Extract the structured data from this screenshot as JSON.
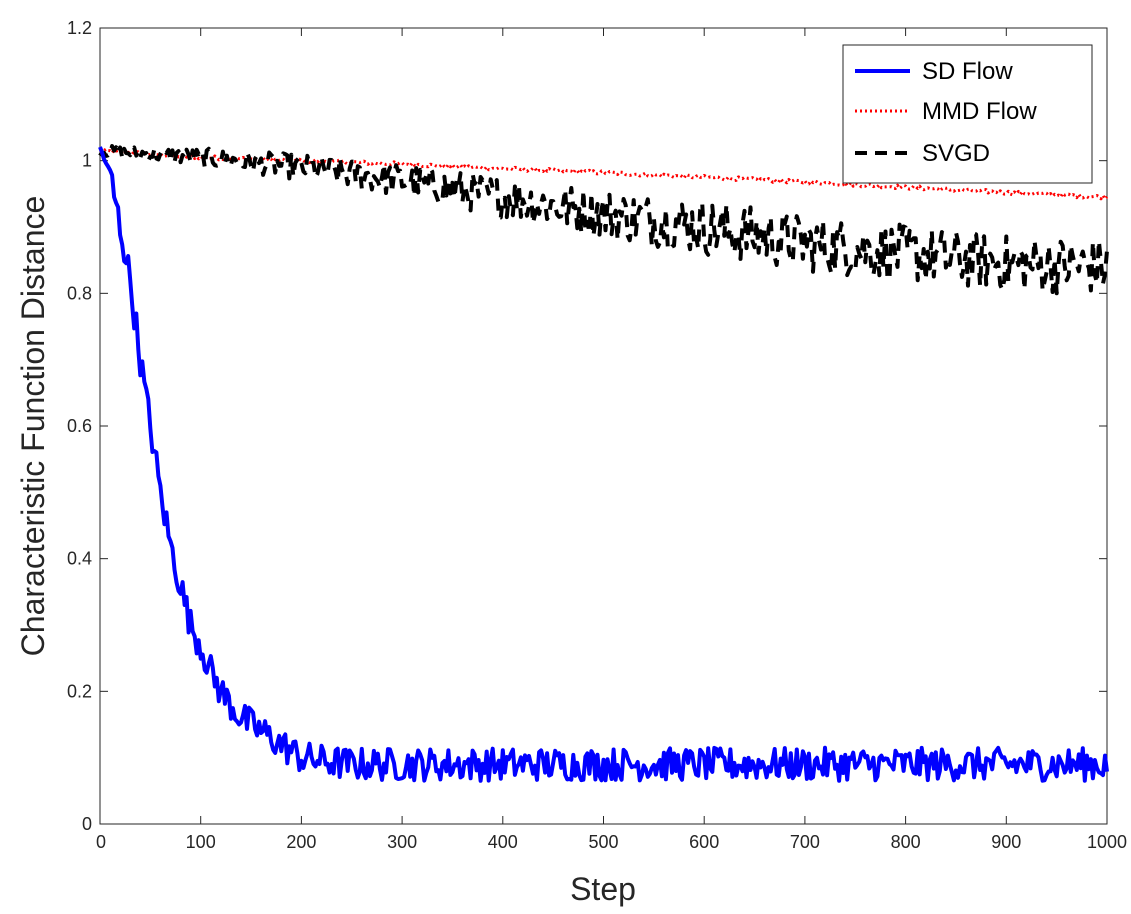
{
  "chart_data": {
    "type": "line",
    "title": "",
    "xlabel": "Step",
    "ylabel": "Characteristic Function Distance",
    "xlim": [
      0,
      1000
    ],
    "ylim": [
      0,
      1.2
    ],
    "xticks": [
      0,
      100,
      200,
      300,
      400,
      500,
      600,
      700,
      800,
      900,
      1000
    ],
    "xtick_labels": [
      "0",
      "100",
      "200",
      "300",
      "400",
      "500",
      "600",
      "700",
      "800",
      "900",
      "1000"
    ],
    "yticks": [
      0,
      0.2,
      0.4,
      0.6,
      0.8,
      1.0,
      1.2
    ],
    "ytick_labels": [
      "0",
      "0.2",
      "0.4",
      "0.6",
      "0.8",
      "1",
      "1.2"
    ],
    "grid": false,
    "legend_position": "top-right",
    "series": [
      {
        "name": "SD Flow",
        "color": "#0000ff",
        "style": "solid",
        "x": [
          0,
          10,
          20,
          30,
          40,
          50,
          60,
          70,
          80,
          90,
          100,
          110,
          120,
          130,
          140,
          150,
          160,
          170,
          180,
          190,
          200,
          220,
          250,
          300,
          350,
          400,
          450,
          500,
          550,
          600,
          650,
          700,
          750,
          800,
          850,
          900,
          950,
          1000
        ],
        "values": [
          1.02,
          0.98,
          0.9,
          0.82,
          0.7,
          0.6,
          0.5,
          0.42,
          0.36,
          0.3,
          0.27,
          0.23,
          0.2,
          0.18,
          0.16,
          0.15,
          0.14,
          0.13,
          0.12,
          0.11,
          0.1,
          0.095,
          0.09,
          0.09,
          0.09,
          0.09,
          0.09,
          0.09,
          0.09,
          0.09,
          0.09,
          0.09,
          0.09,
          0.09,
          0.09,
          0.09,
          0.09,
          0.09
        ]
      },
      {
        "name": "MMD Flow",
        "color": "#ff0000",
        "style": "dotted",
        "x": [
          0,
          100,
          200,
          300,
          400,
          500,
          600,
          700,
          800,
          900,
          1000
        ],
        "values": [
          1.015,
          1.005,
          1.0,
          0.995,
          0.988,
          0.982,
          0.975,
          0.968,
          0.96,
          0.952,
          0.945
        ]
      },
      {
        "name": "SVGD",
        "color": "#000000",
        "style": "dashed",
        "x": [
          0,
          100,
          200,
          300,
          400,
          500,
          600,
          700,
          800,
          900,
          1000
        ],
        "values": [
          1.015,
          1.005,
          0.99,
          0.97,
          0.945,
          0.92,
          0.9,
          0.875,
          0.86,
          0.845,
          0.84
        ]
      }
    ]
  }
}
